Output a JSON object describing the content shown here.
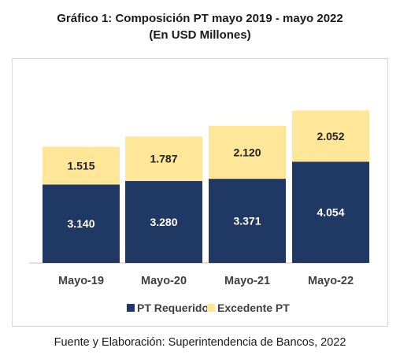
{
  "chart_data": {
    "type": "bar",
    "stacked": true,
    "title": "Gráfico 1: Composición PT mayo 2019 - mayo 2022",
    "subtitle": "(En USD Millones)",
    "categories": [
      "Mayo-19",
      "Mayo-20",
      "Mayo-21",
      "Mayo-22"
    ],
    "series": [
      {
        "name": "PT Requerido",
        "values": [
          3140,
          3280,
          3371,
          4054
        ],
        "labels": [
          "3.140",
          "3.280",
          "3.371",
          "4.054"
        ],
        "color": "#1f3864",
        "label_color": "#ffffff"
      },
      {
        "name": "Excedente PT",
        "values": [
          1515,
          1787,
          2120,
          2052
        ],
        "labels": [
          "1.515",
          "1.787",
          "2.120",
          "2.052"
        ],
        "color": "#ffe699",
        "label_color": "#222222"
      }
    ],
    "legend_position": "bottom",
    "grid": false,
    "ylim": [
      0,
      7000
    ]
  },
  "source": "Fuente y Elaboración: Superintendencia de Bancos, 2022"
}
